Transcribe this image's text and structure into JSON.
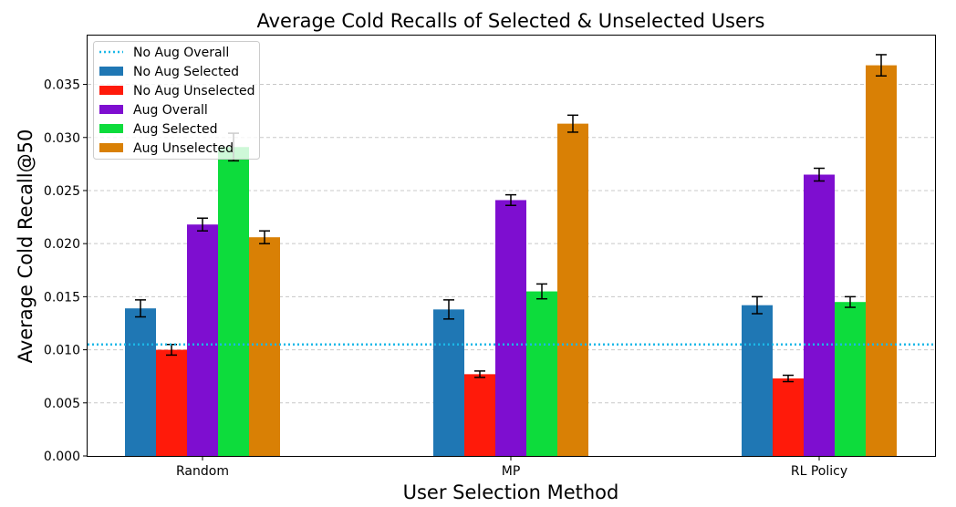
{
  "chart_data": {
    "type": "bar",
    "title": "Average Cold Recalls of Selected & Unselected Users",
    "xlabel": "User Selection Method",
    "ylabel": "Average Cold Recall@50",
    "categories": [
      "Random",
      "MP",
      "RL Policy"
    ],
    "ylim": [
      0,
      0.0396
    ],
    "yticks": [
      "0.000",
      "0.005",
      "0.010",
      "0.015",
      "0.020",
      "0.025",
      "0.030",
      "0.035"
    ],
    "grid": true,
    "legend_position": "top-left",
    "reference_line": {
      "name": "No Aug Overall",
      "value": 0.0105,
      "color": "#1ab8e8",
      "style": "dotted"
    },
    "series": [
      {
        "name": "No Aug Selected",
        "color": "#1f77b4",
        "values": [
          0.0139,
          0.0138,
          0.0142
        ],
        "errors": [
          0.0008,
          0.0009,
          0.0008
        ]
      },
      {
        "name": "No Aug Unselected",
        "color": "#ff1a0a",
        "values": [
          0.01,
          0.0077,
          0.0073
        ],
        "errors": [
          0.0005,
          0.0003,
          0.0003
        ]
      },
      {
        "name": "Aug Overall",
        "color": "#7e0ed0",
        "values": [
          0.0218,
          0.0241,
          0.0265
        ],
        "errors": [
          0.0006,
          0.0005,
          0.0006
        ]
      },
      {
        "name": "Aug Selected",
        "color": "#0ddc3c",
        "values": [
          0.0291,
          0.0155,
          0.0145
        ],
        "errors": [
          0.0013,
          0.0007,
          0.0005
        ]
      },
      {
        "name": "Aug Unselected",
        "color": "#d98005",
        "values": [
          0.0206,
          0.0313,
          0.0368
        ],
        "errors": [
          0.0006,
          0.0008,
          0.001
        ]
      }
    ]
  }
}
